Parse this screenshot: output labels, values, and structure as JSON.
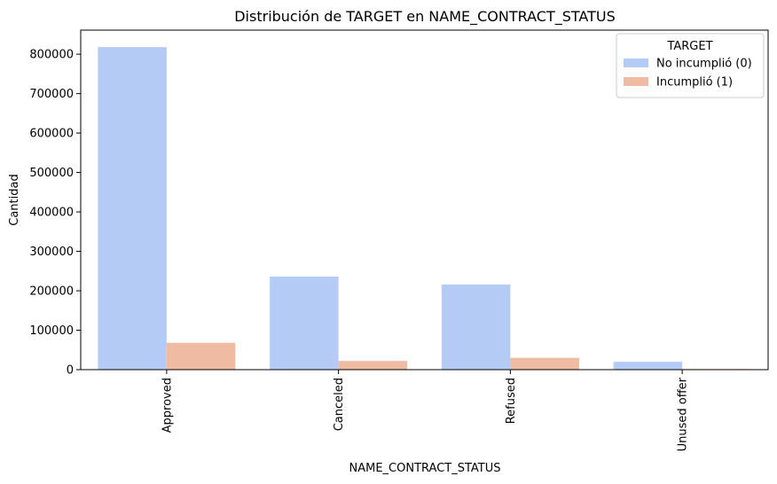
{
  "chart_data": {
    "type": "bar",
    "title": "Distribución de TARGET en NAME_CONTRACT_STATUS",
    "xlabel": "NAME_CONTRACT_STATUS",
    "ylabel": "Cantidad",
    "categories": [
      "Approved",
      "Canceled",
      "Refused",
      "Unused offer"
    ],
    "series": [
      {
        "name": "No incumplió (0)",
        "color": "#b4cbf5",
        "values": [
          818000,
          236000,
          216000,
          20000
        ]
      },
      {
        "name": "Incumplió (1)",
        "color": "#f0bba3",
        "values": [
          68000,
          22000,
          30000,
          1500
        ]
      }
    ],
    "ylim": [
      0,
      861000
    ],
    "yticks": [
      0,
      100000,
      200000,
      300000,
      400000,
      500000,
      600000,
      700000,
      800000
    ],
    "yticklabels": [
      "0",
      "100000",
      "200000",
      "300000",
      "400000",
      "500000",
      "600000",
      "700000",
      "800000"
    ],
    "legend_title": "TARGET",
    "legend_position": "top-right",
    "grid": false
  }
}
